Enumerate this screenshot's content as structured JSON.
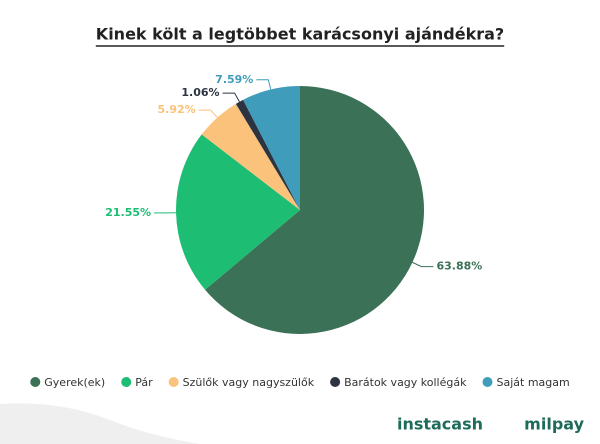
{
  "chart_data": {
    "type": "pie",
    "title": "Kinek költ a legtöbbet karácsonyi ajándékra?",
    "categories": [
      "Gyerek(ek)",
      "Pár",
      "Szülők vagy nagyszülők",
      "Barátok vagy kollégák",
      "Saját magam"
    ],
    "values": [
      63.88,
      21.55,
      5.92,
      1.06,
      7.59
    ],
    "value_labels": [
      "63.88%",
      "21.55%",
      "5.92%",
      "1.06%",
      "7.59%"
    ],
    "colors": [
      "#3b7157",
      "#1dbd73",
      "#fbc27b",
      "#2b3440",
      "#3f9dbb"
    ],
    "legend": "bottom"
  },
  "footer": {
    "logos": [
      "instacash",
      "milpay"
    ]
  }
}
